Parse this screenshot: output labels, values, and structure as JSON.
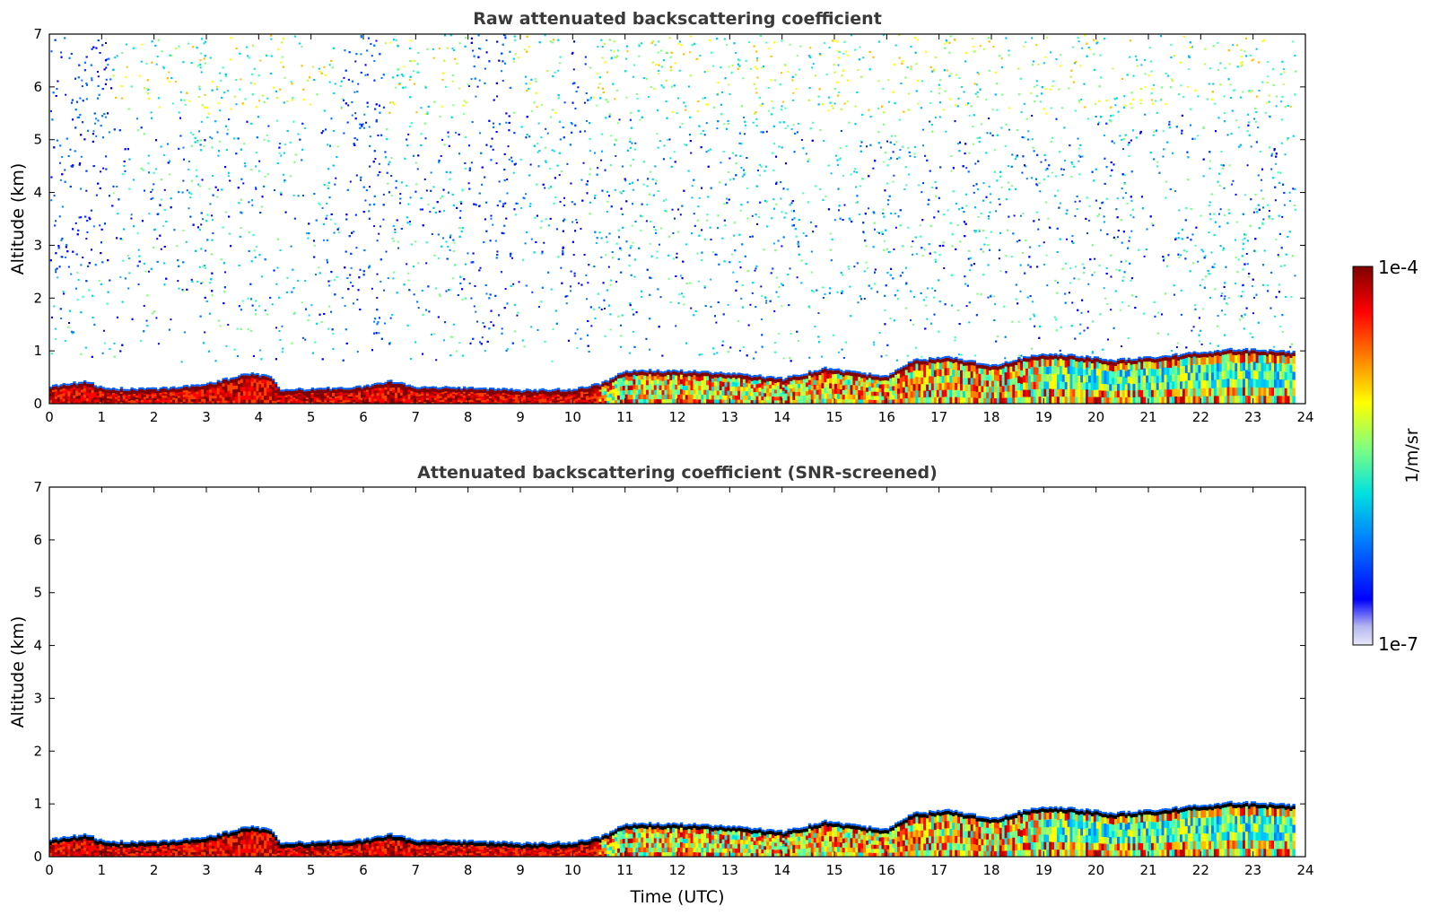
{
  "chart_data": [
    {
      "type": "heatmap",
      "title": "Raw attenuated backscattering coefficient",
      "xlabel": "",
      "ylabel": "Altitude (km)",
      "xlim": [
        0,
        24
      ],
      "ylim": [
        0,
        7
      ],
      "x_ticks": [
        "0",
        "1",
        "2",
        "3",
        "4",
        "5",
        "6",
        "7",
        "8",
        "9",
        "10",
        "11",
        "12",
        "13",
        "14",
        "15",
        "16",
        "17",
        "18",
        "19",
        "20",
        "21",
        "22",
        "23",
        "24"
      ],
      "y_ticks": [
        "0",
        "1",
        "2",
        "3",
        "4",
        "5",
        "6",
        "7"
      ],
      "data_end_time": 23.8,
      "layer_top_km": [
        [
          0,
          0.25
        ],
        [
          0.7,
          0.35
        ],
        [
          1,
          0.22
        ],
        [
          2,
          0.2
        ],
        [
          3,
          0.3
        ],
        [
          3.8,
          0.5
        ],
        [
          4.2,
          0.45
        ],
        [
          4.4,
          0.2
        ],
        [
          5,
          0.2
        ],
        [
          6,
          0.25
        ],
        [
          6.5,
          0.35
        ],
        [
          7,
          0.25
        ],
        [
          8,
          0.22
        ],
        [
          9,
          0.18
        ],
        [
          10,
          0.2
        ],
        [
          10.5,
          0.3
        ],
        [
          11,
          0.55
        ],
        [
          12,
          0.55
        ],
        [
          13,
          0.5
        ],
        [
          14,
          0.4
        ],
        [
          14.8,
          0.6
        ],
        [
          15.5,
          0.5
        ],
        [
          16,
          0.45
        ],
        [
          16.5,
          0.75
        ],
        [
          17.2,
          0.8
        ],
        [
          18,
          0.65
        ],
        [
          18.8,
          0.85
        ],
        [
          19.5,
          0.85
        ],
        [
          20.3,
          0.75
        ],
        [
          21,
          0.8
        ],
        [
          21.5,
          0.85
        ],
        [
          22.5,
          0.95
        ],
        [
          23,
          0.95
        ],
        [
          23.8,
          0.9
        ]
      ],
      "noise_gaps": [
        {
          "t0": 0.0,
          "t1": 1.2,
          "bottom_km": 2.5
        },
        {
          "t0": 5.6,
          "t1": 6.4,
          "bottom_km": 1.0
        },
        {
          "t0": 8.0,
          "t1": 8.8,
          "bottom_km": 1.1
        },
        {
          "t0": 9.8,
          "t1": 10.3,
          "bottom_km": 1.2
        }
      ]
    },
    {
      "type": "heatmap",
      "title": "Attenuated backscattering coefficient (SNR-screened)",
      "xlabel": "Time (UTC)",
      "ylabel": "Altitude (km)",
      "xlim": [
        0,
        24
      ],
      "ylim": [
        0,
        7
      ],
      "x_ticks": [
        "0",
        "1",
        "2",
        "3",
        "4",
        "5",
        "6",
        "7",
        "8",
        "9",
        "10",
        "11",
        "12",
        "13",
        "14",
        "15",
        "16",
        "17",
        "18",
        "19",
        "20",
        "21",
        "22",
        "23",
        "24"
      ],
      "y_ticks": [
        "0",
        "1",
        "2",
        "3",
        "4",
        "5",
        "6",
        "7"
      ],
      "data_end_time": 23.8
    }
  ],
  "colorbar": {
    "label": "1/m/sr",
    "max_label": "1e-4",
    "min_label": "1e-7",
    "scale": "log",
    "colormap": [
      "#e8e8fa",
      "#b4b4f0",
      "#0000ff",
      "#0080ff",
      "#00e0e0",
      "#80ff80",
      "#ffff00",
      "#ff8000",
      "#ff0000",
      "#7f0000"
    ]
  }
}
